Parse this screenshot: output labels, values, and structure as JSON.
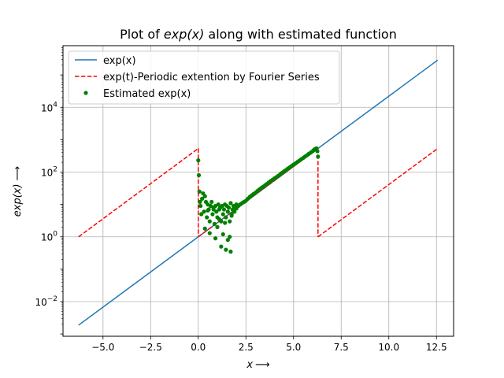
{
  "chart_data": {
    "type": "line",
    "title_prefix": "Plot of ",
    "title_math": "exp(x)",
    "title_suffix": " along with estimated function",
    "xlabel_math": "x",
    "xlabel_arrow": "⟶",
    "ylabel_math": "exp(x)",
    "ylabel_arrow": "⟶",
    "yscale": "log",
    "xlim": [
      -7.1,
      13.4
    ],
    "ylim": [
      0.00085,
      800000
    ],
    "xticks": [
      -5.0,
      -2.5,
      0.0,
      2.5,
      5.0,
      7.5,
      10.0,
      12.5
    ],
    "xtick_labels": [
      "−5.0",
      "−2.5",
      "0.0",
      "2.5",
      "5.0",
      "7.5",
      "10.0",
      "12.5"
    ],
    "yticks": [
      {
        "value": 0.01,
        "base": "10",
        "exp": "−2"
      },
      {
        "value": 1,
        "base": "10",
        "exp": "0"
      },
      {
        "value": 100,
        "base": "10",
        "exp": "2"
      },
      {
        "value": 10000,
        "base": "10",
        "exp": "4"
      }
    ],
    "grid": true,
    "legend_position": "upper-left",
    "series": [
      {
        "name": "exp(x)",
        "style": "line",
        "color": "#1f77b4",
        "x": [
          -6.2832,
          12.5664
        ],
        "y": [
          0.001867,
          286751
        ]
      },
      {
        "name": "exp(t)-Periodic extention by Fourier Series",
        "style": "dashed",
        "color": "#ff0000",
        "segments": [
          {
            "x": [
              -6.2832,
              0.0
            ],
            "y": [
              1.0,
              535.49
            ]
          },
          {
            "x": [
              0.0,
              0.0
            ],
            "y": [
              535.49,
              1.0
            ]
          },
          {
            "x": [
              0.0,
              6.2832
            ],
            "y": [
              1.0,
              535.49
            ]
          },
          {
            "x": [
              6.2832,
              6.2832
            ],
            "y": [
              535.49,
              1.0
            ]
          },
          {
            "x": [
              6.2832,
              12.5664
            ],
            "y": [
              1.0,
              535.49
            ]
          }
        ]
      },
      {
        "name": "Estimated exp(x)",
        "style": "points",
        "color": "#008000",
        "x": [
          0.0,
          0.03,
          0.06,
          0.09,
          0.12,
          0.16,
          0.2,
          0.25,
          0.3,
          0.35,
          0.4,
          0.45,
          0.5,
          0.55,
          0.6,
          0.65,
          0.7,
          0.75,
          0.8,
          0.85,
          0.9,
          0.95,
          1.0,
          1.05,
          1.1,
          1.15,
          1.2,
          1.25,
          1.3,
          1.35,
          1.4,
          1.45,
          1.5,
          1.55,
          1.6,
          1.65,
          1.7,
          1.75,
          1.8,
          1.85,
          1.9,
          1.95,
          2.0,
          2.1,
          2.2,
          2.3,
          2.4,
          2.5,
          2.6,
          2.7,
          2.8,
          2.9,
          3.0,
          3.1,
          3.2,
          3.3,
          3.4,
          3.5,
          3.6,
          3.7,
          3.8,
          3.9,
          4.0,
          4.1,
          4.2,
          4.3,
          4.4,
          4.5,
          4.6,
          4.7,
          4.8,
          4.9,
          5.0,
          5.1,
          5.2,
          5.3,
          5.4,
          5.5,
          5.6,
          5.7,
          5.8,
          5.9,
          6.0,
          6.05,
          6.1,
          6.15,
          6.2,
          6.25,
          6.2832,
          0.35,
          0.6,
          0.9,
          1.2,
          1.45,
          1.7,
          0.5,
          0.8,
          1.0,
          1.3,
          1.55,
          1.75,
          2.0,
          1.1,
          1.4,
          1.65
        ],
        "y": [
          230,
          80,
          25,
          12,
          9,
          5,
          15,
          22,
          6,
          18,
          12,
          4,
          10,
          7,
          3,
          9,
          12,
          5,
          8,
          2.5,
          9,
          6,
          4,
          10,
          7,
          8,
          3,
          9,
          5,
          7,
          10,
          4,
          9,
          6,
          8,
          3,
          11,
          5,
          7,
          9,
          6,
          8,
          10,
          9,
          10,
          11,
          12,
          13,
          15,
          17,
          19,
          21,
          23,
          26,
          29,
          32,
          35,
          39,
          43,
          48,
          53,
          58,
          64,
          70,
          77,
          85,
          95,
          105,
          115,
          128,
          140,
          155,
          170,
          185,
          205,
          225,
          248,
          272,
          300,
          330,
          365,
          400,
          440,
          470,
          500,
          520,
          540,
          440,
          300,
          1.8,
          1.3,
          0.9,
          0.5,
          0.4,
          0.35,
          6.5,
          7,
          2,
          1.2,
          0.8,
          4.5,
          7.5,
          3.5,
          2.7,
          1.0
        ]
      }
    ]
  }
}
